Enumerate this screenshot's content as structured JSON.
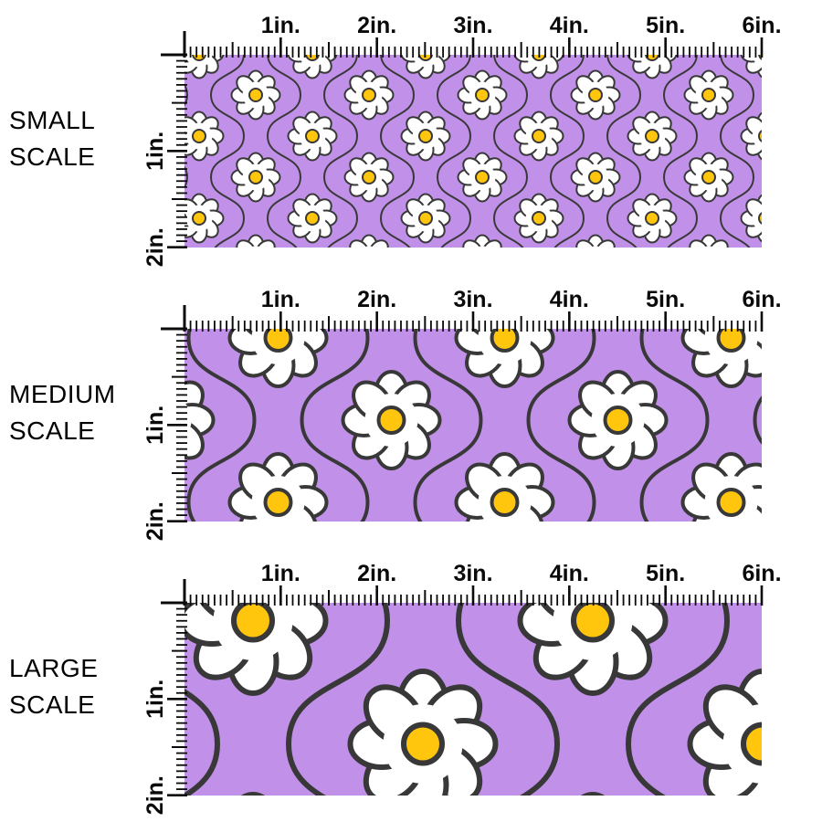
{
  "sections": [
    {
      "name": "small",
      "label_lines": [
        "SMALL",
        "SCALE"
      ]
    },
    {
      "name": "medium",
      "label_lines": [
        "MEDIUM",
        "SCALE"
      ]
    },
    {
      "name": "large",
      "label_lines": [
        "LARGE",
        "SCALE"
      ]
    }
  ],
  "ruler": {
    "horizontal_labels": [
      "1in.",
      "2in.",
      "3in.",
      "4in.",
      "5in.",
      "6in."
    ],
    "vertical_labels": [
      "1in.",
      "2in."
    ],
    "inches_wide": 6,
    "inches_tall": 2
  },
  "pattern": {
    "description": "White eight-petal daisies with yellow centers on purple background with dark ogee wavy lines",
    "motifs": [
      "daisy-flower",
      "ogee-wavy-line"
    ]
  },
  "colors": {
    "background": "#FFFFFF",
    "fabric_purple": "#C190E8",
    "daisy_white": "#FFFFFF",
    "outline_dark": "#383838",
    "ogee_line": "#383838",
    "daisy_center_yellow": "#FFC60D",
    "ruler_black": "#0A0A0A",
    "label_text": "#000000"
  }
}
